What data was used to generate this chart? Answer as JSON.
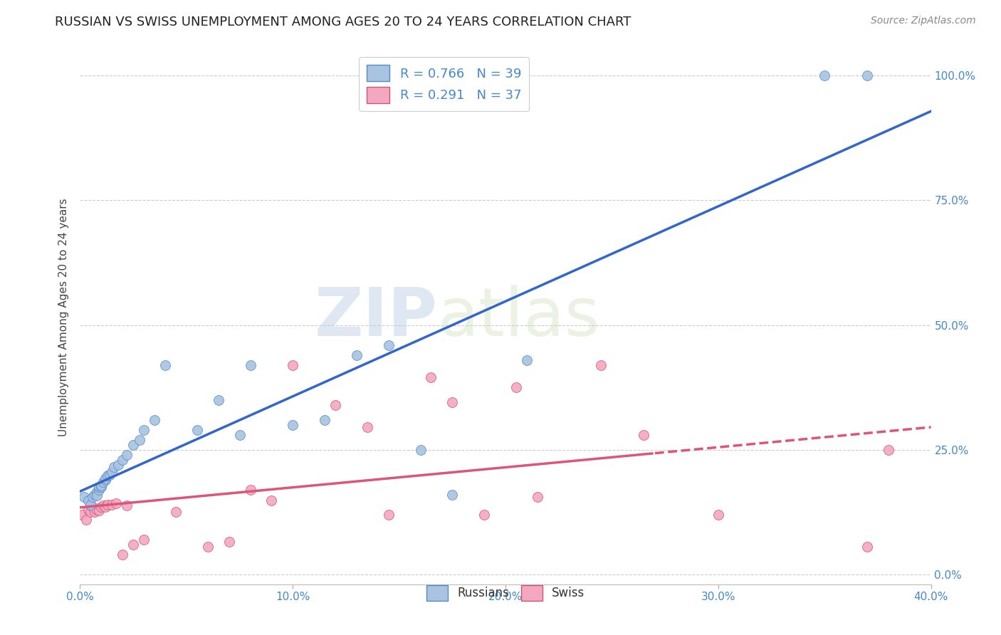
{
  "title": "RUSSIAN VS SWISS UNEMPLOYMENT AMONG AGES 20 TO 24 YEARS CORRELATION CHART",
  "source": "Source: ZipAtlas.com",
  "ylabel": "Unemployment Among Ages 20 to 24 years",
  "xlim": [
    0.0,
    0.4
  ],
  "ylim": [
    -0.02,
    1.05
  ],
  "grid_color": "#cccccc",
  "background_color": "#ffffff",
  "watermark_text": "ZIP",
  "watermark_text2": "atlas",
  "legend_line1": "R = 0.766   N = 39",
  "legend_line2": "R = 0.291   N = 37",
  "russians_dot_color": "#a8c4e0",
  "russians_dot_edge": "#5588cc",
  "swiss_dot_color": "#f4a8c0",
  "swiss_dot_edge": "#cc5577",
  "russians_line_color": "#3366cc",
  "swiss_line_color": "#dd5577",
  "swiss_line_dashed_start": 0.27,
  "dot_size": 100,
  "title_fontsize": 13,
  "label_fontsize": 11,
  "tick_fontsize": 11,
  "russians_x": [
    0.002,
    0.004,
    0.005,
    0.006,
    0.007,
    0.008,
    0.008,
    0.009,
    0.009,
    0.01,
    0.01,
    0.011,
    0.012,
    0.012,
    0.013,
    0.014,
    0.015,
    0.016,
    0.018,
    0.02,
    0.022,
    0.025,
    0.028,
    0.03,
    0.035,
    0.04,
    0.055,
    0.065,
    0.075,
    0.08,
    0.1,
    0.115,
    0.13,
    0.145,
    0.16,
    0.175,
    0.21,
    0.35,
    0.37
  ],
  "russians_y": [
    0.155,
    0.148,
    0.14,
    0.155,
    0.16,
    0.165,
    0.158,
    0.17,
    0.175,
    0.175,
    0.178,
    0.185,
    0.19,
    0.192,
    0.198,
    0.2,
    0.205,
    0.215,
    0.22,
    0.23,
    0.24,
    0.26,
    0.27,
    0.29,
    0.31,
    0.42,
    0.29,
    0.35,
    0.28,
    0.42,
    0.3,
    0.31,
    0.44,
    0.46,
    0.25,
    0.16,
    0.43,
    1.0,
    1.0
  ],
  "swiss_x": [
    0.001,
    0.003,
    0.004,
    0.005,
    0.006,
    0.007,
    0.008,
    0.009,
    0.01,
    0.011,
    0.012,
    0.013,
    0.015,
    0.017,
    0.02,
    0.022,
    0.025,
    0.03,
    0.045,
    0.06,
    0.07,
    0.08,
    0.09,
    0.1,
    0.12,
    0.135,
    0.145,
    0.165,
    0.175,
    0.19,
    0.205,
    0.215,
    0.245,
    0.265,
    0.3,
    0.37,
    0.38
  ],
  "swiss_y": [
    0.12,
    0.11,
    0.13,
    0.125,
    0.135,
    0.125,
    0.13,
    0.128,
    0.135,
    0.138,
    0.135,
    0.14,
    0.14,
    0.142,
    0.04,
    0.138,
    0.06,
    0.07,
    0.125,
    0.055,
    0.065,
    0.17,
    0.148,
    0.42,
    0.34,
    0.295,
    0.12,
    0.395,
    0.345,
    0.12,
    0.375,
    0.155,
    0.42,
    0.28,
    0.12,
    0.055,
    0.25
  ]
}
